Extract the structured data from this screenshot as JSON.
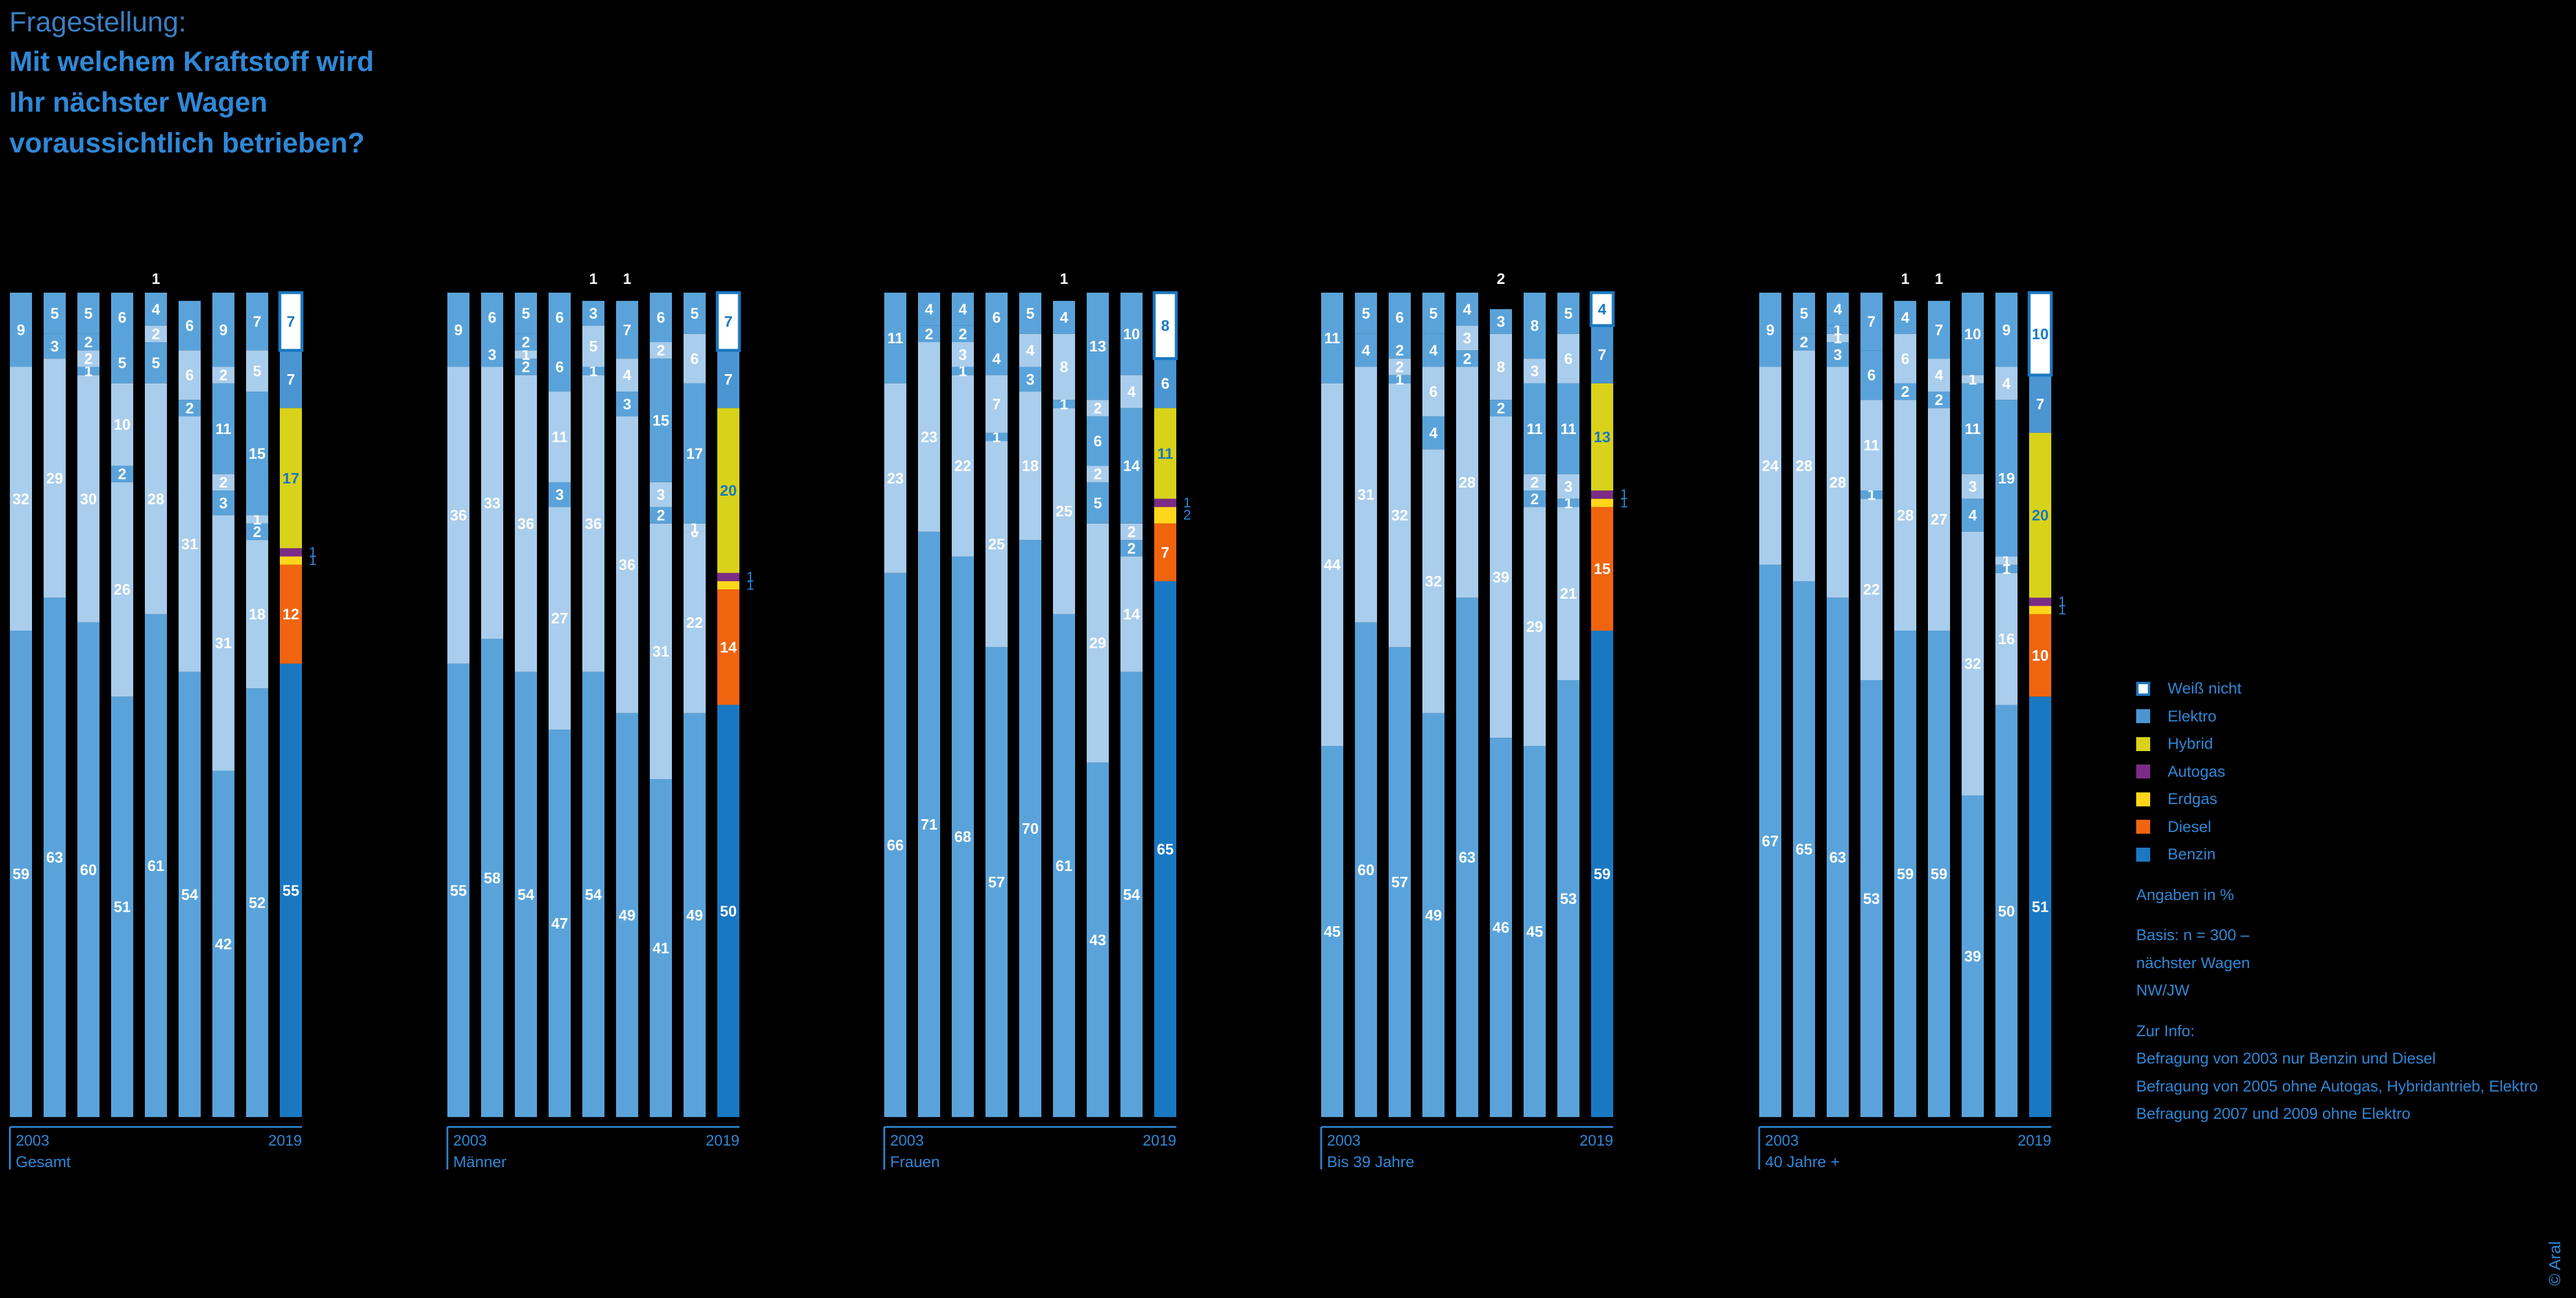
{
  "header": {
    "kicker": "Fragestellung:",
    "question": "Mit welchem Kraftstoff wird Ihr nächster Wagen voraussichtlich betrieben?"
  },
  "legend": {
    "items": [
      {
        "key": "weiss",
        "label": "Weiß nicht"
      },
      {
        "key": "elektro",
        "label": "Elektro"
      },
      {
        "key": "hybrid",
        "label": "Hybrid"
      },
      {
        "key": "autogas",
        "label": "Autogas"
      },
      {
        "key": "erdgas",
        "label": "Erdgas"
      },
      {
        "key": "diesel",
        "label": "Diesel"
      },
      {
        "key": "benzin",
        "label": "Benzin"
      }
    ],
    "unit_note": "Angaben in %",
    "basis": [
      "Basis: n = 300 –",
      "nächster Wagen",
      "NW/JW"
    ],
    "info_title": "Zur Info:",
    "info": [
      "Befragung von 2003 nur Benzin und Diesel",
      "Befragung von 2005 ohne Autogas, Hybridantrieb, Elektro",
      "Befragung 2007 und 2009 ohne Elektro"
    ]
  },
  "copyright": "© Aral",
  "colors": {
    "past_benzin": "#5aa3da",
    "past_diesel": "#a9cdec",
    "past_small": "#5aa3da",
    "past_light": "#a9cdec",
    "benzin": "#1a78c2",
    "diesel": "#f0640f",
    "erdgas": "#ffd61a",
    "autogas": "#7b2c86",
    "hybrid": "#d9d21a",
    "elektro": "#4a95d2",
    "weiss": "#ffffff",
    "axis": "#2f87d6"
  },
  "chart_data": {
    "type": "bar",
    "stacked": true,
    "ylim": [
      0,
      100
    ],
    "segment_order_bottom_to_top": [
      "Benzin",
      "Diesel",
      "Erdgas",
      "Autogas",
      "Hybrid",
      "Elektro",
      "Weiß nicht"
    ],
    "panels": [
      {
        "label": "Gesamt",
        "start_label": "2003",
        "end_label": "2019",
        "bars": [
          {
            "values": [
              59,
              32,
              9
            ]
          },
          {
            "values": [
              63,
              29,
              3,
              5
            ]
          },
          {
            "values": [
              60,
              30,
              1,
              2,
              2,
              5
            ]
          },
          {
            "values": [
              51,
              26,
              2,
              10,
              5,
              6
            ]
          },
          {
            "values": [
              61,
              28,
              5,
              2,
              4
            ],
            "top_label": "1"
          },
          {
            "values": [
              54,
              31,
              2,
              6,
              6
            ]
          },
          {
            "values": [
              42,
              31,
              3,
              2,
              11,
              2,
              9
            ]
          },
          {
            "values": [
              52,
              18,
              2,
              1,
              15,
              5,
              7
            ]
          },
          {
            "values": [
              55,
              12,
              1,
              1,
              17,
              7,
              7
            ],
            "highlight": true
          }
        ]
      },
      {
        "label": "Männer",
        "start_label": "2003",
        "end_label": "2019",
        "bars": [
          {
            "values": [
              55,
              36,
              9
            ]
          },
          {
            "values": [
              58,
              33,
              3,
              6
            ]
          },
          {
            "values": [
              54,
              36,
              2,
              1,
              2,
              5
            ]
          },
          {
            "values": [
              47,
              27,
              3,
              11,
              6,
              6
            ]
          },
          {
            "values": [
              54,
              36,
              1,
              5,
              3
            ],
            "top_label": "1"
          },
          {
            "values": [
              49,
              36,
              3,
              4,
              7
            ],
            "top_label": "1"
          },
          {
            "values": [
              41,
              31,
              2,
              3,
              15,
              2,
              6
            ]
          },
          {
            "values": [
              49,
              22,
              0,
              1,
              17,
              6,
              5
            ]
          },
          {
            "values": [
              50,
              14,
              1,
              1,
              20,
              7,
              7
            ],
            "highlight": true
          }
        ]
      },
      {
        "label": "Frauen",
        "start_label": "2003",
        "end_label": "2019",
        "bars": [
          {
            "values": [
              66,
              23,
              11
            ]
          },
          {
            "values": [
              71,
              23,
              2,
              4
            ]
          },
          {
            "values": [
              68,
              22,
              1,
              3,
              2,
              4
            ]
          },
          {
            "values": [
              57,
              25,
              1,
              7,
              4,
              6
            ]
          },
          {
            "values": [
              70,
              18,
              3,
              4,
              5
            ]
          },
          {
            "values": [
              61,
              25,
              1,
              8,
              4
            ],
            "top_label": "1"
          },
          {
            "values": [
              43,
              29,
              5,
              2,
              6,
              2,
              13
            ]
          },
          {
            "values": [
              54,
              14,
              2,
              2,
              14,
              4,
              10
            ]
          },
          {
            "values": [
              65,
              7,
              2,
              1,
              11,
              6,
              8
            ],
            "highlight": true
          }
        ]
      },
      {
        "label": "Bis 39 Jahre",
        "start_label": "2003",
        "end_label": "2019",
        "bars": [
          {
            "values": [
              45,
              44,
              11
            ]
          },
          {
            "values": [
              60,
              31,
              4,
              5
            ]
          },
          {
            "values": [
              57,
              32,
              1,
              2,
              2,
              6
            ]
          },
          {
            "values": [
              49,
              32,
              4,
              6,
              4,
              5
            ]
          },
          {
            "values": [
              63,
              28,
              2,
              3,
              4
            ]
          },
          {
            "values": [
              46,
              39,
              2,
              8,
              3
            ],
            "top_label": "2"
          },
          {
            "values": [
              45,
              29,
              2,
              2,
              11,
              3,
              8
            ]
          },
          {
            "values": [
              53,
              21,
              1,
              3,
              11,
              6,
              5
            ]
          },
          {
            "values": [
              59,
              15,
              1,
              1,
              13,
              7,
              4
            ],
            "highlight": true
          }
        ]
      },
      {
        "label": "40 Jahre +",
        "start_label": "2003",
        "end_label": "2019",
        "bars": [
          {
            "values": [
              67,
              24,
              9
            ]
          },
          {
            "values": [
              65,
              28,
              2,
              5
            ]
          },
          {
            "values": [
              63,
              28,
              3,
              1,
              1,
              4
            ]
          },
          {
            "values": [
              53,
              22,
              1,
              11,
              6,
              7
            ]
          },
          {
            "values": [
              59,
              28,
              2,
              6,
              4
            ],
            "top_label": "1"
          },
          {
            "values": [
              59,
              27,
              2,
              4,
              7
            ],
            "top_label": "1"
          },
          {
            "values": [
              39,
              32,
              4,
              3,
              11,
              1,
              10
            ]
          },
          {
            "values": [
              50,
              16,
              1,
              1,
              19,
              4,
              9
            ]
          },
          {
            "values": [
              51,
              10,
              1,
              1,
              20,
              7,
              10
            ],
            "highlight": true
          }
        ]
      }
    ]
  }
}
